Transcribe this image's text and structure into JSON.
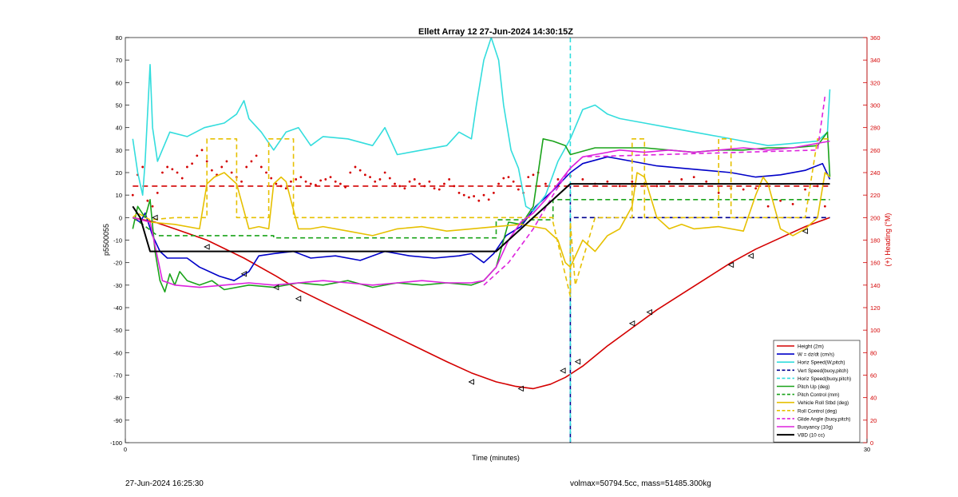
{
  "footer": {
    "left": "27-Jun-2024 16:25:30",
    "right": "volmax=50794.5cc, mass=51485.300kg"
  },
  "chart_data": {
    "type": "line",
    "title": "Ellett Array 12 27-Jun-2024 14:30:15Z",
    "xlabel": "Time (minutes)",
    "ylabel": "p5500055",
    "y2label": "(+) Heading (°M)",
    "xlim": [
      0,
      30
    ],
    "ylim": [
      -100,
      80
    ],
    "y2lim": [
      0,
      360
    ],
    "x_ticks": [
      0,
      30
    ],
    "y_ticks": [
      -100,
      -90,
      -80,
      -70,
      -60,
      -50,
      -40,
      -30,
      -20,
      -10,
      0,
      10,
      20,
      30,
      40,
      50,
      60,
      70,
      80
    ],
    "y2_ticks": [
      0,
      20,
      40,
      60,
      80,
      100,
      120,
      140,
      160,
      180,
      200,
      220,
      240,
      260,
      280,
      300,
      320,
      340,
      360
    ],
    "grid": false,
    "legend_position": "bottom-right",
    "series": [
      {
        "name": "Height (2m)",
        "color": "#d40000",
        "style": "solid",
        "width": 1.6,
        "x": [
          0.3,
          1.2,
          2.0,
          3.3,
          4.8,
          6.1,
          7.0,
          8.3,
          10.0,
          11.5,
          13.0,
          14.0,
          15.0,
          15.8,
          16.5,
          17.2,
          17.8,
          18.5,
          19.5,
          20.5,
          21.5,
          22.5,
          23.5,
          24.5,
          25.5,
          26.5,
          27.5,
          28.5
        ],
        "y": [
          0,
          -2,
          -5,
          -10,
          -18,
          -26,
          -32,
          -39,
          -48,
          -56,
          -64,
          -69,
          -73,
          -75,
          -76,
          -74,
          -71,
          -66,
          -57,
          -49,
          -41,
          -34,
          -27,
          -20,
          -14,
          -9,
          -4,
          0
        ]
      },
      {
        "name": "W = dz/dt (cm/s)",
        "color": "#0000c8",
        "style": "solid",
        "width": 1.6,
        "x": [
          0.3,
          0.6,
          0.8,
          1.1,
          1.4,
          1.7,
          2.5,
          3.0,
          3.8,
          4.4,
          5.0,
          5.4,
          6.0,
          6.8,
          7.5,
          8.5,
          9.5,
          10.5,
          11.5,
          12.5,
          13.5,
          14.0,
          14.5,
          14.9,
          15.4,
          16.0,
          16.6,
          17.3,
          18.0,
          18.5,
          19.5,
          20.5,
          21.5,
          22.5,
          23.5,
          24.5,
          25.5,
          26.5,
          27.5,
          28.2,
          28.5
        ],
        "y": [
          0,
          -2,
          2,
          -8,
          -15,
          -18,
          -18,
          -22,
          -26,
          -28,
          -24,
          -17,
          -16,
          -15,
          -18,
          -17,
          -19,
          -15,
          -17,
          -18,
          -17,
          -16,
          -20,
          -16,
          -8,
          -4,
          5,
          12,
          20,
          24,
          27,
          25,
          23,
          22,
          21,
          20,
          18,
          19,
          21,
          24,
          17
        ]
      },
      {
        "name": "Horiz Speed(W,pitch)",
        "color": "#33dddd",
        "style": "solid",
        "width": 1.6,
        "x": [
          0.3,
          0.5,
          0.7,
          0.8,
          1.0,
          1.1,
          1.3,
          1.8,
          2.5,
          3.2,
          4.0,
          4.5,
          4.8,
          5.0,
          5.5,
          6.0,
          6.5,
          7.0,
          7.5,
          8.0,
          9.0,
          10.0,
          10.5,
          11.0,
          12.0,
          13.0,
          13.5,
          14.0,
          14.2,
          14.5,
          14.8,
          15.1,
          15.3,
          15.6,
          15.9,
          16.2,
          16.5,
          17.0,
          17.5,
          18.0,
          18.5,
          19.0,
          19.5,
          20.0,
          21.0,
          22.0,
          23.0,
          24.0,
          25.0,
          26.0,
          27.0,
          28.0,
          28.4,
          28.5
        ],
        "y": [
          35,
          20,
          10,
          25,
          68,
          40,
          25,
          38,
          36,
          40,
          42,
          46,
          52,
          44,
          38,
          30,
          38,
          40,
          32,
          36,
          35,
          32,
          40,
          28,
          30,
          32,
          38,
          35,
          50,
          70,
          80,
          70,
          50,
          30,
          22,
          5,
          3,
          10,
          25,
          35,
          48,
          50,
          46,
          44,
          42,
          40,
          38,
          36,
          34,
          32,
          33,
          34,
          38,
          57
        ]
      },
      {
        "name": "Vert Speed(buoy,pitch)",
        "color": "#000090",
        "style": "dashed",
        "width": 1.6,
        "x": [
          18.0,
          18.0,
          18.0,
          19.0,
          20.0,
          22.0,
          24.0,
          26.0,
          27.0,
          28.0,
          28.5
        ],
        "y": [
          15,
          -100,
          0,
          0,
          0,
          0,
          0,
          0,
          0,
          0,
          0
        ]
      },
      {
        "name": "Horiz Speed(buoy,pitch)",
        "color": "#33dddd",
        "style": "dashed",
        "width": 1.6,
        "x": [
          18.0,
          18.0
        ],
        "y": [
          80,
          -100
        ]
      },
      {
        "name": "Pitch Up (deg)",
        "color": "#1aa31a",
        "style": "solid",
        "width": 1.6,
        "x": [
          0.3,
          0.5,
          0.8,
          1.0,
          1.2,
          1.4,
          1.6,
          1.8,
          2.0,
          2.2,
          2.5,
          3.0,
          3.5,
          4.0,
          5.0,
          6.0,
          7.0,
          8.0,
          9.0,
          10.0,
          11.0,
          12.0,
          13.0,
          14.0,
          14.5,
          15.0,
          15.5,
          16.0,
          16.2,
          16.5,
          16.9,
          17.3,
          17.8,
          18.0,
          19.0,
          20.0,
          21.0,
          22.0,
          23.0,
          24.0,
          25.0,
          26.0,
          27.0,
          28.0,
          28.4,
          28.5
        ],
        "y": [
          -5,
          5,
          0,
          8,
          -15,
          -28,
          -33,
          -25,
          -30,
          -24,
          -28,
          -30,
          -28,
          -32,
          -30,
          -31,
          -29,
          -30,
          -28,
          -31,
          -29,
          -30,
          -29,
          -30,
          -28,
          -22,
          -2,
          -3,
          0,
          5,
          35,
          34,
          32,
          28,
          31,
          31,
          31,
          30,
          29,
          30,
          30,
          31,
          31,
          32,
          38,
          18
        ]
      },
      {
        "name": "Pitch Control (mm)",
        "color": "#1aa31a",
        "style": "dashed",
        "width": 1.6,
        "x": [
          0.3,
          0.7,
          1.3,
          2.0,
          6.0,
          6.0,
          10.0,
          14.0,
          15.0,
          15.0,
          17.3,
          17.3,
          22.0,
          22.0,
          26.0,
          28.5
        ],
        "y": [
          0,
          -3,
          -8,
          -8,
          -8,
          -9,
          -9,
          -9,
          -9,
          -1,
          -1,
          8,
          8,
          8,
          8,
          8
        ]
      },
      {
        "name": "Vehicle Roll Stbd (deg)",
        "color": "#e6c000",
        "style": "solid",
        "width": 1.6,
        "x": [
          0.3,
          1.0,
          2.0,
          3.0,
          3.3,
          3.6,
          4.0,
          4.5,
          5.0,
          5.4,
          5.8,
          6.0,
          6.3,
          6.5,
          7.0,
          7.5,
          8.0,
          9.0,
          10.0,
          11.0,
          12.0,
          13.0,
          14.0,
          15.0,
          16.0,
          17.0,
          17.5,
          17.8,
          18.0,
          18.5,
          19.0,
          19.5,
          20.0,
          20.5,
          20.7,
          21.0,
          21.5,
          22.0,
          22.5,
          23.0,
          24.0,
          25.0,
          25.5,
          25.8,
          26.0,
          26.5,
          27.0,
          27.5,
          28.0,
          28.3,
          28.5
        ],
        "y": [
          0,
          -2,
          -3,
          -5,
          15,
          18,
          20,
          15,
          -5,
          -4,
          -5,
          15,
          18,
          16,
          -5,
          -5,
          -4,
          -6,
          -8,
          -5,
          -4,
          -6,
          -5,
          -4,
          -3,
          -5,
          -10,
          -20,
          -22,
          -10,
          -15,
          -8,
          -5,
          5,
          20,
          18,
          0,
          -5,
          -3,
          -5,
          -4,
          -6,
          10,
          18,
          15,
          -5,
          -8,
          -5,
          0,
          20,
          18
        ]
      },
      {
        "name": "Roll Control (deg)",
        "color": "#e6c000",
        "style": "dashed",
        "width": 1.6,
        "x": [
          0.3,
          0.5,
          1.0,
          2.0,
          3.0,
          3.3,
          3.3,
          4.5,
          4.5,
          5.8,
          5.8,
          6.5,
          6.8,
          6.8,
          7.5,
          14.0,
          14.5,
          17.3,
          17.3,
          18.0,
          18.0,
          18.2,
          19.0,
          20.5,
          20.5,
          21.0,
          21.0,
          21.5,
          24.0,
          24.0,
          24.5,
          24.5,
          25.0,
          27.5,
          28.0,
          28.5
        ],
        "y": [
          0,
          2,
          -1,
          0,
          0,
          0,
          35,
          35,
          0,
          0,
          35,
          35,
          35,
          0,
          0,
          0,
          0,
          0,
          -2,
          -35,
          -2,
          -30,
          0,
          0,
          35,
          35,
          0,
          0,
          0,
          35,
          35,
          0,
          0,
          0,
          35,
          35
        ]
      },
      {
        "name": "Glide Angle (buoy,pitch)",
        "color": "#dd22dd",
        "style": "dashed",
        "width": 1.6,
        "x": [
          14.5,
          15.5,
          16.5,
          17.3,
          18.0,
          18.5,
          28.0,
          28.3
        ],
        "y": [
          -30,
          -20,
          -5,
          10,
          22,
          27,
          30,
          54
        ]
      },
      {
        "name": "Buoyancy (10g)",
        "color": "#dd22dd",
        "style": "solid",
        "width": 1.6,
        "x": [
          0.3,
          1.0,
          1.5,
          2.0,
          3.0,
          4.0,
          5.0,
          6.0,
          7.0,
          8.0,
          9.0,
          10.0,
          11.0,
          12.0,
          13.0,
          14.0,
          14.5,
          15.0,
          15.5,
          16.0,
          16.5,
          17.0,
          17.5,
          18.0,
          18.5,
          19.0,
          20.0,
          21.0,
          22.0,
          23.0,
          24.0,
          25.0,
          26.0,
          27.0,
          28.0,
          28.5
        ],
        "y": [
          0,
          -2,
          -28,
          -30,
          -31,
          -30,
          -29,
          -30,
          -29,
          -28,
          -29,
          -30,
          -29,
          -28,
          -29,
          -29,
          -28,
          -22,
          -10,
          -2,
          2,
          8,
          15,
          22,
          27,
          28,
          30,
          29,
          30,
          29,
          30,
          31,
          30,
          31,
          33,
          34
        ]
      },
      {
        "name": "VBD (10 cc)",
        "color": "#000000",
        "style": "solid",
        "width": 2.0,
        "x": [
          0.3,
          0.6,
          1.0,
          14.5,
          15.0,
          16.0,
          16.5,
          18.0,
          20.0,
          25.0,
          28.5
        ],
        "y": [
          5,
          0,
          -15,
          -15,
          -15,
          -5,
          0,
          15,
          15,
          15,
          15
        ]
      }
    ],
    "heading_series": {
      "name": "Heading",
      "axis": "y2",
      "color": "#d40000",
      "mean": 230,
      "x": [
        0.3,
        0.5,
        0.7,
        0.9,
        1.1,
        1.3,
        1.5,
        1.7,
        1.9,
        2.1,
        2.3,
        2.5,
        2.7,
        2.9,
        3.1,
        3.3,
        3.5,
        3.7,
        3.9,
        4.1,
        4.3,
        4.5,
        4.7,
        4.9,
        5.1,
        5.3,
        5.5,
        5.7,
        5.9,
        6.1,
        6.3,
        6.5,
        6.7,
        6.9,
        7.1,
        7.3,
        7.5,
        7.7,
        7.9,
        8.1,
        8.3,
        8.5,
        8.7,
        8.9,
        9.1,
        9.3,
        9.5,
        9.7,
        9.9,
        10.1,
        10.3,
        10.5,
        10.7,
        10.9,
        11.1,
        11.3,
        11.5,
        11.7,
        11.9,
        12.1,
        12.3,
        12.5,
        12.7,
        12.9,
        13.1,
        13.3,
        13.5,
        13.7,
        13.9,
        14.1,
        14.3,
        14.5,
        14.7,
        14.9,
        15.1,
        15.3,
        15.5,
        15.7,
        15.9,
        16.1,
        16.3,
        16.5,
        16.7,
        17.0,
        17.5,
        18.0,
        18.5,
        19.0,
        19.5,
        20.0,
        20.5,
        21.0,
        21.5,
        22.0,
        22.5,
        23.0,
        23.5,
        24.0,
        24.5,
        25.0,
        25.5,
        26.0,
        26.5,
        27.0,
        27.5,
        28.0,
        28.3
      ],
      "y": [
        220,
        238,
        245,
        215,
        210,
        222,
        240,
        245,
        243,
        240,
        235,
        245,
        248,
        255,
        260,
        250,
        242,
        238,
        245,
        250,
        240,
        236,
        232,
        245,
        250,
        255,
        245,
        240,
        235,
        230,
        228,
        226,
        232,
        234,
        236,
        232,
        230,
        229,
        233,
        234,
        236,
        232,
        230,
        227,
        240,
        245,
        242,
        238,
        236,
        232,
        234,
        240,
        235,
        230,
        228,
        226,
        232,
        234,
        230,
        228,
        232,
        226,
        225,
        230,
        234,
        228,
        222,
        220,
        218,
        219,
        215,
        220,
        216,
        222,
        230,
        235,
        236,
        232,
        225,
        222,
        236,
        238,
        240,
        230,
        234,
        237,
        234,
        230,
        232,
        228,
        232,
        230,
        228,
        232,
        234,
        236,
        232,
        222,
        226,
        225,
        226,
        210,
        215,
        212,
        225,
        228,
        210
      ]
    },
    "dashed_reference_lines": [
      {
        "color": "#d40000",
        "y": 14,
        "x_range": [
          0.3,
          28.5
        ]
      }
    ],
    "markers": {
      "series": "Height (2m)",
      "x": [
        1.2,
        3.3,
        4.8,
        6.1,
        7.0,
        14.0,
        16.0,
        17.7,
        18.3,
        20.5,
        21.2,
        24.5,
        25.3,
        27.5
      ],
      "y": [
        0,
        -13,
        -25,
        -31,
        -36,
        -73,
        -76,
        -68,
        -64,
        -47,
        -42,
        -21,
        -17,
        -6
      ]
    }
  }
}
